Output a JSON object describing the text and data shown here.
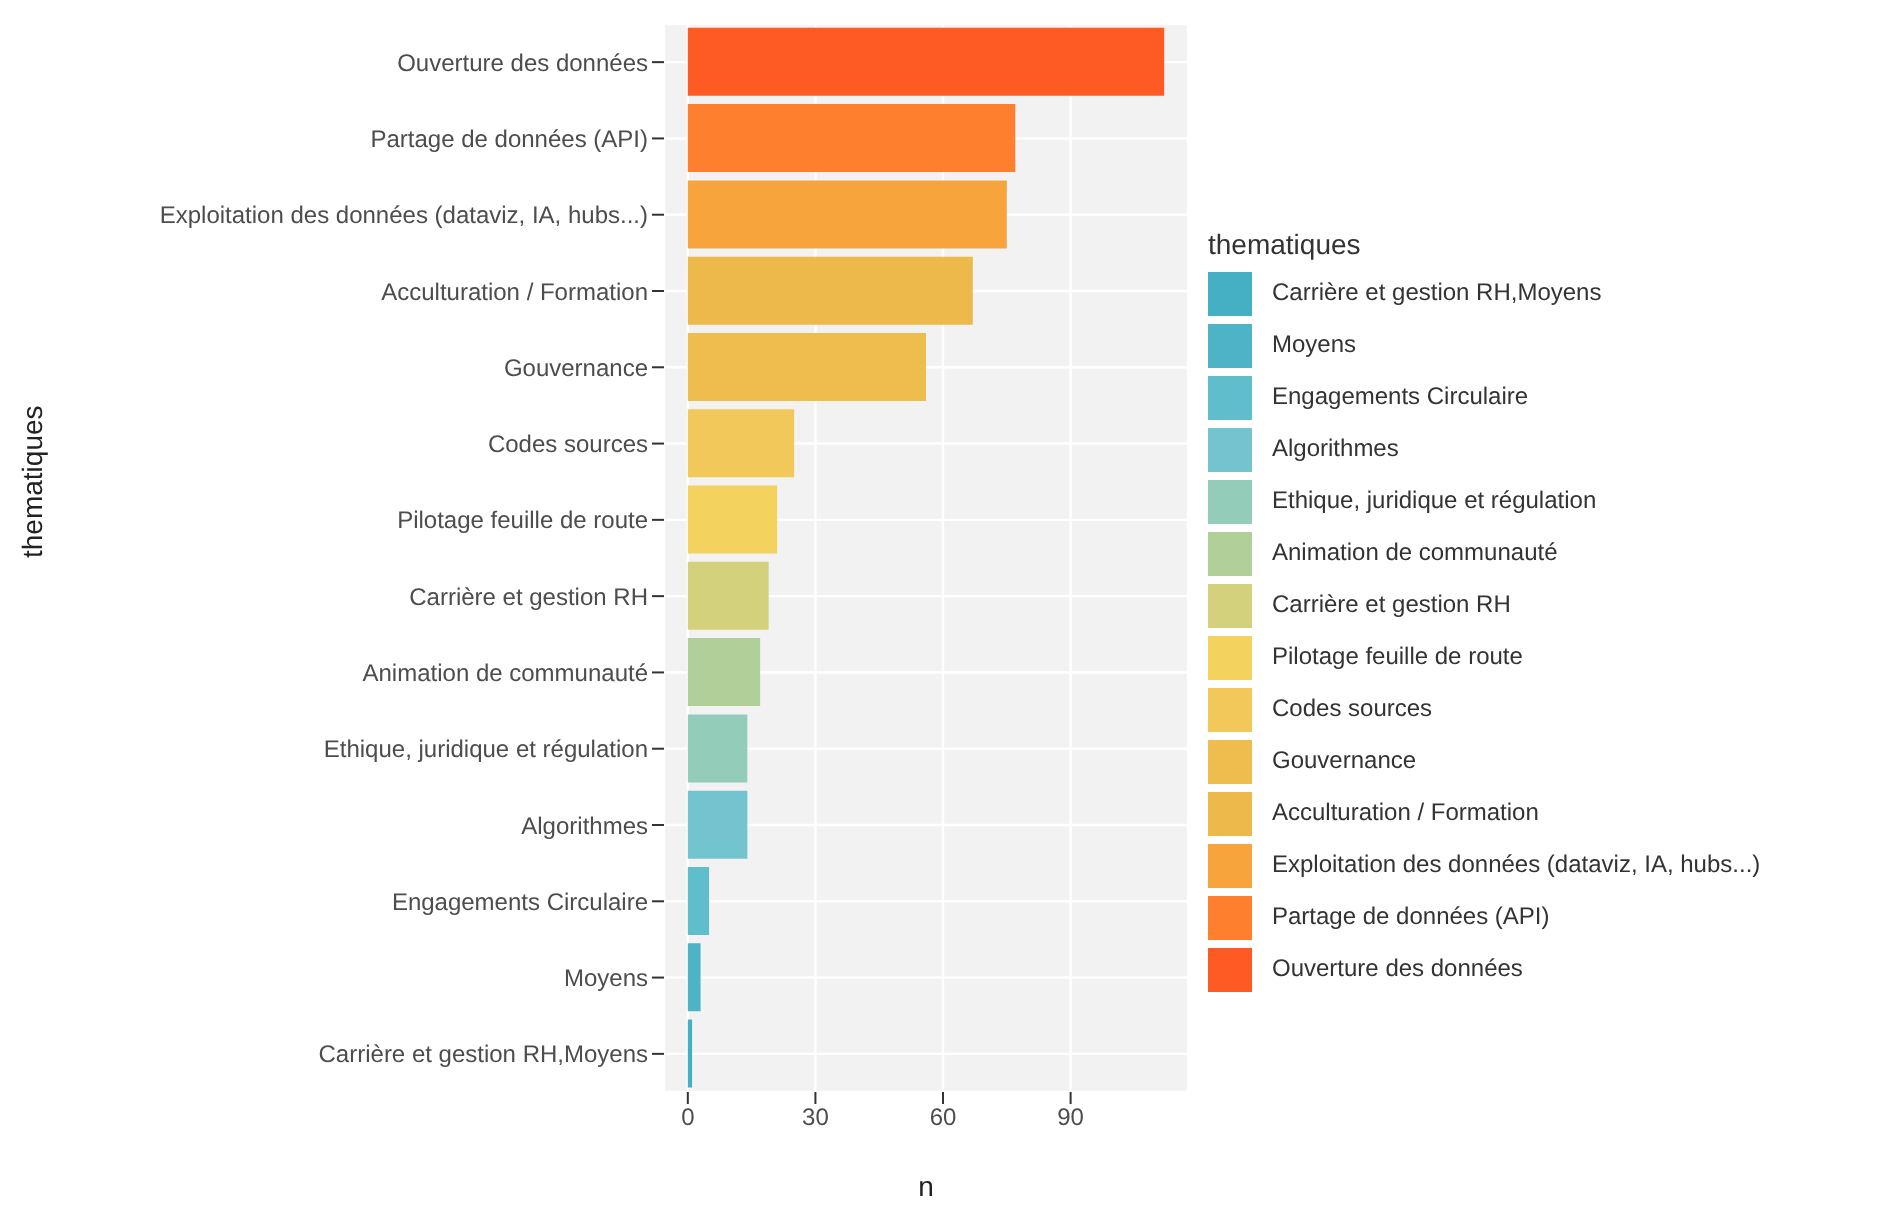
{
  "chart_data": {
    "type": "bar",
    "orientation": "horizontal",
    "stacked": true,
    "xlabel": "n",
    "ylabel": "thematiques",
    "legend_title": "thematiques",
    "legend": "right",
    "grid": true,
    "categories": [
      "Ouverture des données",
      "Partage de données (API)",
      "Exploitation des données (dataviz, IA, hubs...)",
      "Acculturation / Formation",
      "Gouvernance",
      "Codes sources",
      "Pilotage feuille de route",
      "Carrière et gestion RH",
      "Animation de communauté",
      "Ethique, juridique et régulation",
      "Algorithmes",
      "Engagements Circulaire",
      "Moyens",
      "Carrière et gestion RH,Moyens"
    ],
    "series": [
      {
        "name": "Ouverture des données",
        "color": "#fe5a24",
        "values": [
          112,
          null,
          null,
          null,
          null,
          null,
          null,
          null,
          null,
          null,
          null,
          null,
          null,
          null
        ]
      },
      {
        "name": "Partage de données (API)",
        "color": "#fe7f2d",
        "values": [
          null,
          77,
          null,
          null,
          null,
          null,
          null,
          null,
          null,
          null,
          null,
          null,
          null,
          null
        ]
      },
      {
        "name": "Exploitation des données (dataviz, IA, hubs...)",
        "color": "#f7a43c",
        "values": [
          null,
          null,
          75,
          null,
          null,
          null,
          null,
          null,
          null,
          null,
          null,
          null,
          null,
          null
        ]
      },
      {
        "name": "Acculturation / Formation",
        "color": "#ecb94a",
        "values": [
          null,
          null,
          null,
          67,
          null,
          null,
          null,
          null,
          null,
          null,
          null,
          null,
          null,
          null
        ]
      },
      {
        "name": "Gouvernance",
        "color": "#eebd4e",
        "values": [
          null,
          null,
          null,
          null,
          56,
          null,
          null,
          null,
          null,
          null,
          null,
          null,
          null,
          null
        ]
      },
      {
        "name": "Codes sources",
        "color": "#f2c85a",
        "values": [
          null,
          null,
          null,
          null,
          null,
          25,
          null,
          null,
          null,
          null,
          null,
          null,
          null,
          null
        ]
      },
      {
        "name": "Pilotage feuille de route",
        "color": "#f3d35e",
        "values": [
          null,
          null,
          null,
          null,
          null,
          null,
          21,
          null,
          null,
          null,
          null,
          null,
          null,
          null
        ]
      },
      {
        "name": "Carrière et gestion RH",
        "color": "#d4d17c",
        "values": [
          null,
          null,
          null,
          null,
          null,
          null,
          null,
          19,
          null,
          null,
          null,
          null,
          null,
          null
        ]
      },
      {
        "name": "Animation de communauté",
        "color": "#b1cf99",
        "values": [
          null,
          null,
          null,
          null,
          null,
          null,
          null,
          null,
          17,
          null,
          null,
          null,
          null,
          null
        ]
      },
      {
        "name": "Ethique, juridique et régulation",
        "color": "#93cdb9",
        "values": [
          null,
          null,
          null,
          null,
          null,
          null,
          null,
          null,
          null,
          14,
          null,
          null,
          null,
          null
        ]
      },
      {
        "name": "Algorithmes",
        "color": "#74c4cf",
        "values": [
          null,
          null,
          null,
          null,
          null,
          null,
          null,
          null,
          null,
          null,
          14,
          null,
          null,
          null
        ]
      },
      {
        "name": "Engagements Circulaire",
        "color": "#60bdcb",
        "values": [
          null,
          null,
          null,
          null,
          null,
          null,
          null,
          null,
          null,
          null,
          null,
          5,
          null,
          null
        ]
      },
      {
        "name": "Moyens",
        "color": "#4eb3c6",
        "values": [
          null,
          null,
          null,
          null,
          null,
          null,
          null,
          null,
          null,
          null,
          null,
          null,
          3,
          null
        ]
      },
      {
        "name": "Carrière et gestion RH,Moyens",
        "color": "#45afc3",
        "values": [
          null,
          null,
          null,
          null,
          null,
          null,
          null,
          null,
          null,
          null,
          null,
          null,
          null,
          1
        ]
      }
    ],
    "xlim": [
      -5.6,
      117.6
    ],
    "xticks": [
      0,
      30,
      60,
      90
    ]
  }
}
